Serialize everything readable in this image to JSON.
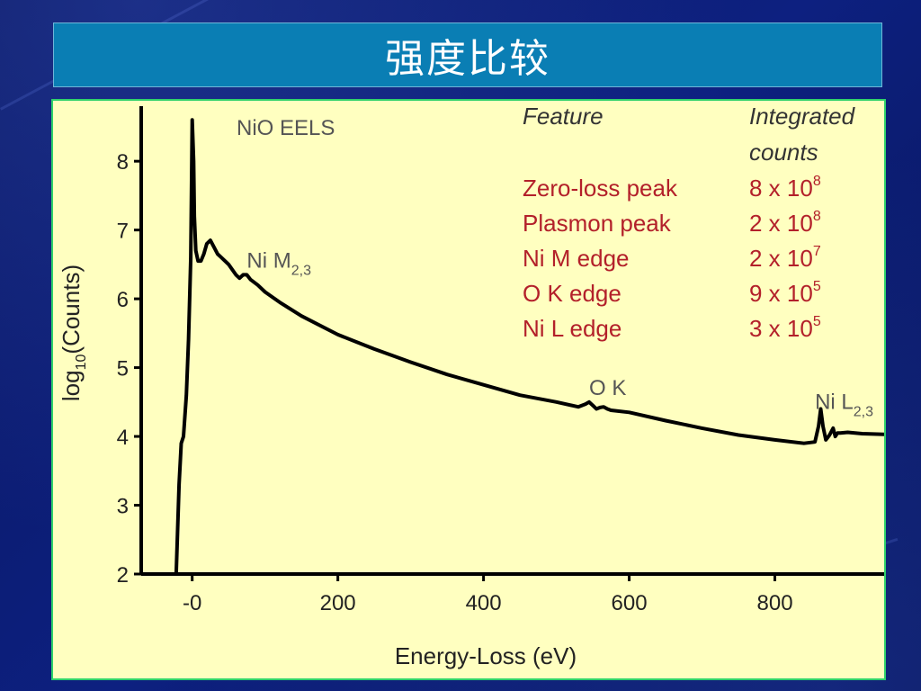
{
  "slide": {
    "title": "强度比较"
  },
  "chart_data": {
    "type": "line",
    "title": "NiO EELS",
    "xlabel": "Energy-Loss (eV)",
    "ylabel_main": "log",
    "ylabel_sub": "10",
    "ylabel_end": "(Counts)",
    "xlim": [
      -70,
      950
    ],
    "ylim": [
      2,
      8.8
    ],
    "x_ticks": [
      0,
      200,
      400,
      600,
      800
    ],
    "x_tick_labels": [
      "-0",
      "200",
      "400",
      "600",
      "800"
    ],
    "y_ticks": [
      2,
      3,
      4,
      5,
      6,
      7,
      8
    ],
    "y_tick_labels": [
      "2",
      "3",
      "4",
      "5",
      "6",
      "7",
      "8"
    ],
    "grid": false,
    "series": [
      {
        "x": [
          -22,
          -18,
          -15,
          -12,
          -8,
          -5,
          -2,
          0,
          2,
          3,
          5,
          8,
          12,
          16,
          20,
          25,
          30,
          35,
          40,
          50,
          60,
          65,
          70,
          75,
          80,
          90,
          100,
          120,
          150,
          200,
          250,
          300,
          350,
          400,
          450,
          500,
          530,
          540,
          545,
          550,
          555,
          560,
          565,
          570,
          575,
          600,
          650,
          700,
          750,
          800,
          840,
          855,
          860,
          863,
          866,
          870,
          875,
          880,
          883,
          886,
          890,
          900,
          920,
          950
        ],
        "y": [
          2.0,
          3.3,
          3.9,
          4.0,
          4.6,
          5.4,
          6.6,
          8.6,
          8.0,
          7.2,
          6.7,
          6.55,
          6.55,
          6.65,
          6.8,
          6.85,
          6.75,
          6.65,
          6.6,
          6.5,
          6.35,
          6.3,
          6.35,
          6.35,
          6.28,
          6.2,
          6.1,
          5.95,
          5.75,
          5.48,
          5.27,
          5.08,
          4.9,
          4.75,
          4.6,
          4.5,
          4.43,
          4.47,
          4.5,
          4.45,
          4.4,
          4.42,
          4.43,
          4.4,
          4.38,
          4.35,
          4.23,
          4.12,
          4.02,
          3.95,
          3.9,
          3.92,
          4.15,
          4.4,
          4.15,
          3.95,
          4.02,
          4.12,
          4.0,
          4.05,
          4.05,
          4.06,
          4.04,
          4.03
        ]
      }
    ],
    "annotations": [
      {
        "text": "Ni M",
        "sub": "2,3",
        "x": 75,
        "y": 6.45
      },
      {
        "text": "O K",
        "sub": "",
        "x": 545,
        "y": 4.6
      },
      {
        "text": "Ni L",
        "sub": "2,3",
        "x": 855,
        "y": 4.4
      }
    ],
    "table": {
      "headers": [
        "Feature",
        "Integrated counts"
      ],
      "rows": [
        {
          "feature": "Zero-loss peak",
          "mantissa": "8 x 10",
          "exponent": "8"
        },
        {
          "feature": "Plasmon peak",
          "mantissa": "2 x 10",
          "exponent": "8"
        },
        {
          "feature": "Ni M edge",
          "mantissa": "2 x 10",
          "exponent": "7"
        },
        {
          "feature": "O K edge",
          "mantissa": "9 x 10",
          "exponent": "5"
        },
        {
          "feature": "Ni L edge",
          "mantissa": "3 x 10",
          "exponent": "5"
        }
      ]
    },
    "colors": {
      "line": "#000000",
      "table_text": "#b3202a",
      "background": "#ffffc0",
      "border": "#2fd16a"
    }
  }
}
